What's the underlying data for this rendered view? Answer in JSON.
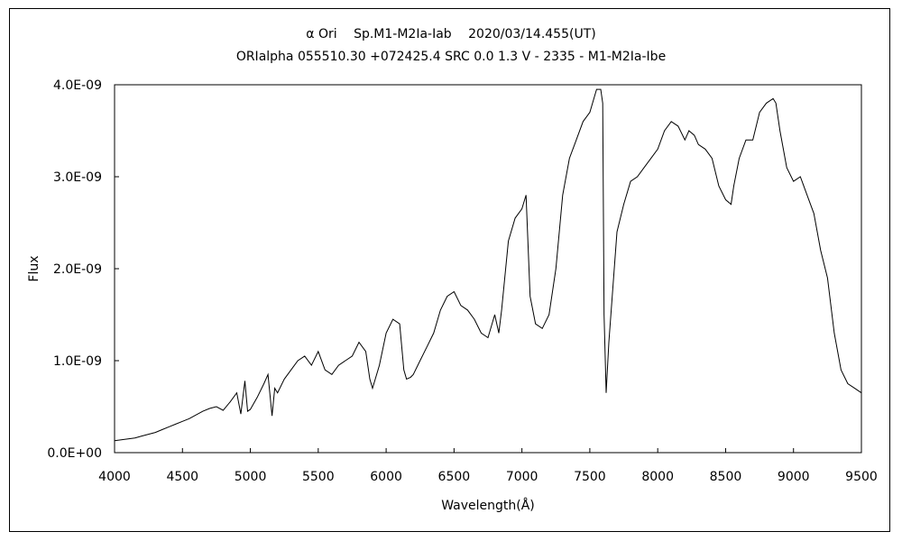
{
  "chart_data": {
    "type": "line",
    "title": "α Ori　 Sp.M1-M2Ia-Iab　 2020/03/14.455(UT)",
    "subtitle": "ORIalpha 055510.30 +072425.4 SRC 0.0 1.3 V - 2335 - M1-M2Ia-Ibe",
    "xlabel": "Wavelength(Å)",
    "ylabel": "Flux",
    "xlim": [
      4000,
      9500
    ],
    "ylim": [
      0,
      4e-09
    ],
    "grid": false,
    "legend": "none",
    "x_ticks": [
      4000,
      4500,
      5000,
      5500,
      6000,
      6500,
      7000,
      7500,
      8000,
      8500,
      9000,
      9500
    ],
    "x_tick_labels": [
      "4000",
      "4500",
      "5000",
      "5500",
      "6000",
      "6500",
      "7000",
      "7500",
      "8000",
      "8500",
      "9000",
      "9500"
    ],
    "y_ticks": [
      0,
      1e-09,
      2e-09,
      3e-09,
      4e-09
    ],
    "y_tick_labels": [
      "0.0E+00",
      "1.0E-09",
      "2.0E-09",
      "3.0E-09",
      "4.0E-09"
    ],
    "series": [
      {
        "color": "#000000",
        "x": [
          4000,
          4050,
          4100,
          4150,
          4200,
          4250,
          4300,
          4350,
          4400,
          4450,
          4500,
          4550,
          4600,
          4650,
          4700,
          4750,
          4800,
          4850,
          4900,
          4930,
          4960,
          4980,
          5000,
          5050,
          5100,
          5130,
          5160,
          5180,
          5200,
          5250,
          5300,
          5350,
          5400,
          5450,
          5500,
          5550,
          5600,
          5650,
          5700,
          5750,
          5800,
          5850,
          5880,
          5900,
          5950,
          6000,
          6050,
          6100,
          6130,
          6150,
          6180,
          6200,
          6250,
          6300,
          6350,
          6400,
          6450,
          6500,
          6550,
          6600,
          6650,
          6700,
          6750,
          6800,
          6830,
          6850,
          6880,
          6900,
          6950,
          7000,
          7030,
          7060,
          7080,
          7100,
          7150,
          7200,
          7250,
          7300,
          7350,
          7400,
          7450,
          7500,
          7550,
          7580,
          7595,
          7605,
          7620,
          7640,
          7680,
          7700,
          7750,
          7800,
          7850,
          7900,
          7950,
          8000,
          8050,
          8100,
          8150,
          8200,
          8230,
          8270,
          8300,
          8350,
          8400,
          8450,
          8500,
          8540,
          8560,
          8600,
          8650,
          8700,
          8750,
          8800,
          8850,
          8870,
          8900,
          8950,
          9000,
          9050,
          9100,
          9150,
          9200,
          9250,
          9300,
          9350,
          9400,
          9450,
          9500
        ],
        "y": [
          1.3e-10,
          1.4e-10,
          1.5e-10,
          1.6e-10,
          1.8e-10,
          2e-10,
          2.2e-10,
          2.5e-10,
          2.8e-10,
          3.1e-10,
          3.4e-10,
          3.7e-10,
          4.1e-10,
          4.5e-10,
          4.8e-10,
          5e-10,
          4.6e-10,
          5.5e-10,
          6.5e-10,
          4.2e-10,
          7.8e-10,
          4.5e-10,
          4.7e-10,
          6e-10,
          7.5e-10,
          8.5e-10,
          4e-10,
          7e-10,
          6.5e-10,
          8e-10,
          9e-10,
          1e-09,
          1.05e-09,
          9.5e-10,
          1.1e-09,
          9e-10,
          8.5e-10,
          9.5e-10,
          1e-09,
          1.05e-09,
          1.2e-09,
          1.1e-09,
          8e-10,
          7e-10,
          9.5e-10,
          1.3e-09,
          1.45e-09,
          1.4e-09,
          9e-10,
          8e-10,
          8.2e-10,
          8.5e-10,
          1e-09,
          1.15e-09,
          1.3e-09,
          1.55e-09,
          1.7e-09,
          1.75e-09,
          1.6e-09,
          1.55e-09,
          1.45e-09,
          1.3e-09,
          1.25e-09,
          1.5e-09,
          1.3e-09,
          1.55e-09,
          2e-09,
          2.3e-09,
          2.55e-09,
          2.65e-09,
          2.8e-09,
          1.7e-09,
          1.55e-09,
          1.4e-09,
          1.35e-09,
          1.5e-09,
          2e-09,
          2.8e-09,
          3.2e-09,
          3.4e-09,
          3.6e-09,
          3.7e-09,
          3.95e-09,
          3.95e-09,
          3.8e-09,
          1.5e-09,
          6.5e-10,
          1.2e-09,
          2e-09,
          2.4e-09,
          2.7e-09,
          2.95e-09,
          3e-09,
          3.1e-09,
          3.2e-09,
          3.3e-09,
          3.5e-09,
          3.6e-09,
          3.55e-09,
          3.4e-09,
          3.5e-09,
          3.45e-09,
          3.35e-09,
          3.3e-09,
          3.2e-09,
          2.9e-09,
          2.75e-09,
          2.7e-09,
          2.9e-09,
          3.2e-09,
          3.4e-09,
          3.4e-09,
          3.7e-09,
          3.8e-09,
          3.85e-09,
          3.8e-09,
          3.5e-09,
          3.1e-09,
          2.95e-09,
          3e-09,
          2.8e-09,
          2.6e-09,
          2.2e-09,
          1.9e-09,
          1.3e-09,
          9e-10,
          7.5e-10,
          7e-10,
          6.5e-10
        ]
      }
    ]
  }
}
